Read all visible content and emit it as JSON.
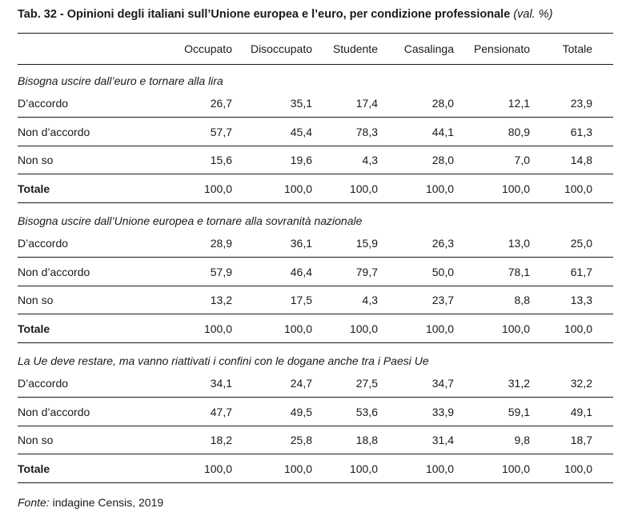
{
  "title": {
    "main": "Tab. 32 - Opinioni degli italiani sull’Unione europea e l’euro, per condizione professionale",
    "suffix": "(val. %)"
  },
  "columns": [
    "Occupato",
    "Disoccupato",
    "Studente",
    "Casalinga",
    "Pensionato",
    "Totale"
  ],
  "sections": [
    {
      "heading": "Bisogna uscire dall’euro e tornare alla lira",
      "rows": [
        {
          "label": "D’accordo",
          "values": [
            "26,7",
            "35,1",
            "17,4",
            "28,0",
            "12,1",
            "23,9"
          ]
        },
        {
          "label": "Non d’accordo",
          "values": [
            "57,7",
            "45,4",
            "78,3",
            "44,1",
            "80,9",
            "61,3"
          ]
        },
        {
          "label": "Non so",
          "values": [
            "15,6",
            "19,6",
            "4,3",
            "28,0",
            "7,0",
            "14,8"
          ]
        },
        {
          "label": "Totale",
          "values": [
            "100,0",
            "100,0",
            "100,0",
            "100,0",
            "100,0",
            "100,0"
          ]
        }
      ]
    },
    {
      "heading": "Bisogna uscire dall’Unione europea e tornare alla sovranità nazionale",
      "rows": [
        {
          "label": "D’accordo",
          "values": [
            "28,9",
            "36,1",
            "15,9",
            "26,3",
            "13,0",
            "25,0"
          ]
        },
        {
          "label": "Non d’accordo",
          "values": [
            "57,9",
            "46,4",
            "79,7",
            "50,0",
            "78,1",
            "61,7"
          ]
        },
        {
          "label": "Non so",
          "values": [
            "13,2",
            "17,5",
            "4,3",
            "23,7",
            "8,8",
            "13,3"
          ]
        },
        {
          "label": "Totale",
          "values": [
            "100,0",
            "100,0",
            "100,0",
            "100,0",
            "100,0",
            "100,0"
          ]
        }
      ]
    },
    {
      "heading": "La Ue deve restare, ma vanno riattivati i confini con le dogane anche tra i Paesi Ue",
      "rows": [
        {
          "label": "D’accordo",
          "values": [
            "34,1",
            "24,7",
            "27,5",
            "34,7",
            "31,2",
            "32,2"
          ]
        },
        {
          "label": "Non d’accordo",
          "values": [
            "47,7",
            "49,5",
            "53,6",
            "33,9",
            "59,1",
            "49,1"
          ]
        },
        {
          "label": "Non so",
          "values": [
            "18,2",
            "25,8",
            "18,8",
            "31,4",
            "9,8",
            "18,7"
          ]
        },
        {
          "label": "Totale",
          "values": [
            "100,0",
            "100,0",
            "100,0",
            "100,0",
            "100,0",
            "100,0"
          ]
        }
      ]
    }
  ],
  "source": {
    "label": "Fonte:",
    "text": "indagine Censis, 2019"
  }
}
